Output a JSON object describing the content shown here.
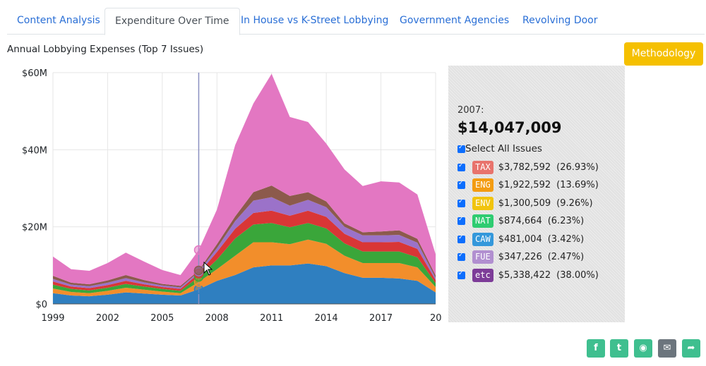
{
  "tabs": [
    {
      "label": "Content Analysis"
    },
    {
      "label": "Expenditure Over Time"
    },
    {
      "label": "In House vs K-Street Lobbying"
    },
    {
      "label": "Government Agencies"
    },
    {
      "label": "Revolving Door"
    }
  ],
  "chart_title": "Annual Lobbying Expenses (Top 7 Issues)",
  "methodology_label": "Methodology",
  "panel": {
    "year": "2007:",
    "total": "$14,047,009",
    "select_all_label": "Select All Issues",
    "issues": [
      {
        "code": "TAX",
        "amount": "$3,782,592",
        "pct": "(26.93%)",
        "color": "#e8736c"
      },
      {
        "code": "ENG",
        "amount": "$1,922,592",
        "pct": "(13.69%)",
        "color": "#f39c12"
      },
      {
        "code": "ENV",
        "amount": "$1,300,509",
        "pct": "(9.26%)",
        "color": "#f1c40f"
      },
      {
        "code": "NAT",
        "amount": "$874,664",
        "pct": "(6.23%)",
        "color": "#2ecc71"
      },
      {
        "code": "CAW",
        "amount": "$481,004",
        "pct": "(3.42%)",
        "color": "#3498db"
      },
      {
        "code": "FUE",
        "amount": "$347,226",
        "pct": "(2.47%)",
        "color": "#b18fd0"
      },
      {
        "code": "etc",
        "amount": "$5,338,422",
        "pct": "(38.00%)",
        "color": "#7d3c98"
      }
    ]
  },
  "share_icons": [
    "facebook-icon",
    "twitter-icon",
    "reddit-icon",
    "email-icon",
    "share-icon"
  ],
  "chart_data": {
    "type": "area",
    "stacked": true,
    "title": "Annual Lobbying Expenses (Top 7 Issues)",
    "x": [
      1999,
      2000,
      2001,
      2002,
      2003,
      2004,
      2005,
      2006,
      2007,
      2008,
      2009,
      2010,
      2011,
      2012,
      2013,
      2014,
      2015,
      2016,
      2017,
      2018,
      2019,
      2020
    ],
    "x_ticks": [
      "1999",
      "2002",
      "2005",
      "2008",
      "2011",
      "2014",
      "2017",
      "20"
    ],
    "y_ticks": [
      "$0",
      "$20M",
      "$40M",
      "$60M"
    ],
    "ylim": [
      0,
      60000000
    ],
    "grid": true,
    "highlight_year": 2007,
    "series": [
      {
        "color": "#2f7fc0",
        "values": [
          2.8,
          2.2,
          2.0,
          2.4,
          3.0,
          2.7,
          2.4,
          2.2,
          3.8,
          6.0,
          7.5,
          9.5,
          10.0,
          10.0,
          10.5,
          9.8,
          8.0,
          6.8,
          6.8,
          6.6,
          6.0,
          3.0
        ]
      },
      {
        "color": "#f28e2b",
        "values": [
          1.2,
          0.9,
          0.8,
          1.0,
          1.2,
          1.0,
          0.8,
          0.6,
          1.9,
          3.0,
          5.0,
          6.5,
          6.0,
          5.5,
          6.2,
          5.8,
          4.5,
          3.8,
          3.8,
          4.0,
          3.5,
          1.4
        ]
      },
      {
        "color": "#3aa63a",
        "values": [
          1.0,
          0.8,
          0.7,
          0.8,
          1.0,
          0.8,
          0.7,
          0.6,
          1.3,
          2.5,
          4.5,
          4.6,
          5.0,
          4.4,
          4.3,
          4.0,
          3.2,
          3.0,
          3.0,
          3.0,
          2.6,
          1.0
        ]
      },
      {
        "color": "#d93636",
        "values": [
          0.8,
          0.6,
          0.6,
          0.7,
          0.8,
          0.6,
          0.5,
          0.5,
          0.9,
          2.0,
          2.5,
          3.0,
          3.2,
          3.0,
          3.2,
          3.0,
          2.5,
          2.4,
          2.4,
          2.5,
          2.2,
          0.8
        ]
      },
      {
        "color": "#9b72c9",
        "values": [
          0.7,
          0.5,
          0.5,
          0.6,
          0.7,
          0.5,
          0.4,
          0.4,
          0.5,
          1.0,
          2.0,
          3.2,
          3.5,
          2.6,
          2.8,
          2.5,
          1.8,
          1.8,
          1.8,
          1.8,
          1.6,
          0.6
        ]
      },
      {
        "color": "#8c5a4c",
        "values": [
          0.8,
          0.5,
          0.5,
          0.6,
          0.8,
          0.6,
          0.4,
          0.4,
          0.3,
          1.0,
          1.2,
          2.2,
          3.0,
          2.5,
          2.0,
          1.5,
          0.9,
          0.8,
          1.0,
          1.2,
          1.0,
          0.6
        ]
      },
      {
        "color": "#e377c2",
        "values": [
          5.0,
          3.5,
          3.5,
          4.5,
          5.8,
          4.8,
          3.6,
          2.8,
          5.3,
          9.0,
          18.5,
          23.0,
          29.0,
          20.5,
          18.2,
          15.0,
          14.0,
          12.0,
          13.0,
          12.4,
          11.5,
          5.5
        ]
      }
    ],
    "units": "millions USD"
  }
}
